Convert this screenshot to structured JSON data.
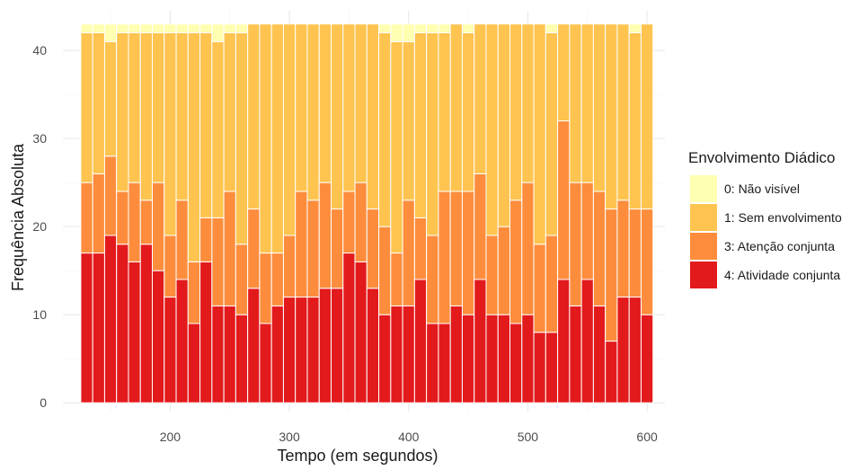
{
  "chart_data": {
    "type": "bar",
    "stacked": true,
    "xlabel": "Tempo (em segundos)",
    "ylabel": "Frequência Absoluta",
    "x_ticks": [
      200,
      300,
      400,
      500,
      600
    ],
    "y_ticks": [
      0,
      10,
      20,
      30,
      40
    ],
    "xlim": [
      110,
      615
    ],
    "ylim": [
      -1,
      44.5
    ],
    "grid": true,
    "x": [
      130,
      140,
      150,
      160,
      170,
      180,
      190,
      200,
      210,
      220,
      230,
      240,
      250,
      260,
      270,
      280,
      290,
      300,
      310,
      320,
      330,
      340,
      350,
      360,
      370,
      380,
      390,
      400,
      410,
      420,
      430,
      440,
      450,
      460,
      470,
      480,
      490,
      500,
      510,
      520,
      530,
      540,
      550,
      560,
      570,
      580,
      590,
      600
    ],
    "legend": {
      "title": "Envolvimento Diádico",
      "position": "right"
    },
    "series": [
      {
        "name": "4: Atividade conjunta",
        "color": "#e31a1c",
        "values": [
          17,
          17,
          19,
          18,
          16,
          18,
          15,
          12,
          14,
          9,
          16,
          11,
          11,
          10,
          13,
          9,
          11,
          12,
          12,
          12,
          13,
          13,
          17,
          16,
          13,
          10,
          11,
          11,
          14,
          9,
          9,
          11,
          10,
          14,
          10,
          10,
          9,
          10,
          8,
          8,
          14,
          11,
          14,
          11,
          7,
          12,
          12,
          10
        ]
      },
      {
        "name": "3: Atenção conjunta",
        "color": "#fd8d3c",
        "values": [
          8,
          9,
          9,
          6,
          9,
          5,
          10,
          7,
          9,
          7,
          5,
          10,
          13,
          8,
          9,
          8,
          6,
          7,
          12,
          11,
          12,
          9,
          7,
          9,
          9,
          10,
          6,
          12,
          7,
          10,
          15,
          13,
          14,
          12,
          9,
          10,
          14,
          15,
          10,
          11,
          18,
          14,
          11,
          13,
          15,
          11,
          10,
          12
        ]
      },
      {
        "name": "1: Sem envolvimento",
        "color": "#fec44f",
        "values": [
          17,
          16,
          13,
          18,
          17,
          19,
          17,
          23,
          19,
          26,
          21,
          20,
          18,
          24,
          21,
          26,
          26,
          24,
          19,
          20,
          18,
          21,
          19,
          18,
          21,
          22,
          24,
          18,
          21,
          23,
          18,
          19,
          18,
          17,
          24,
          23,
          20,
          18,
          25,
          23,
          11,
          18,
          18,
          19,
          21,
          20,
          20,
          21
        ]
      },
      {
        "name": "0: Não visível",
        "color": "#ffffb2",
        "values": [
          1,
          1,
          2,
          1,
          1,
          1,
          1,
          1,
          1,
          1,
          1,
          2,
          1,
          1,
          0,
          0,
          0,
          0,
          0,
          0,
          0,
          0,
          0,
          0,
          0,
          1,
          2,
          2,
          1,
          1,
          1,
          0,
          1,
          0,
          0,
          0,
          0,
          0,
          0,
          1,
          0,
          0,
          0,
          0,
          0,
          0,
          1,
          0
        ]
      }
    ]
  }
}
